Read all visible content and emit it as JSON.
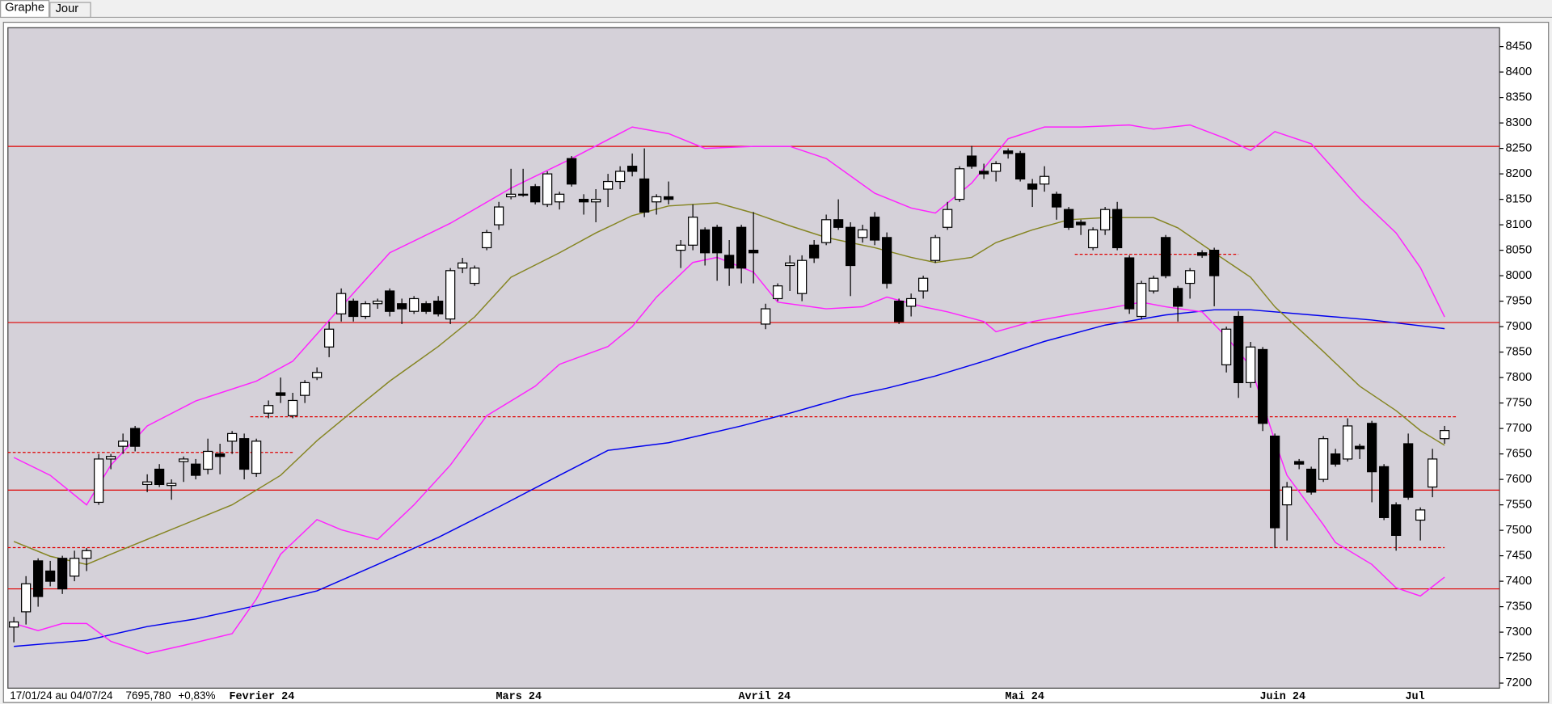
{
  "tabs": [
    "Graphe",
    "Jour"
  ],
  "chart_data": {
    "type": "candlestick",
    "info": {
      "period": "17/01/24 au 04/07/24",
      "last": "7695,780",
      "change": "+0,83%"
    },
    "categories": [
      null,
      null,
      null,
      null,
      null,
      null,
      null,
      null,
      null,
      null,
      null,
      null,
      null,
      null,
      null,
      null,
      null,
      null,
      "Fevrier 24",
      null,
      null,
      null,
      null,
      null,
      null,
      null,
      null,
      null,
      null,
      null,
      null,
      null,
      null,
      null,
      null,
      null,
      null,
      null,
      null,
      null,
      "Mars 24",
      null,
      null,
      null,
      null,
      null,
      null,
      null,
      null,
      null,
      null,
      null,
      null,
      null,
      null,
      null,
      null,
      null,
      null,
      null,
      "Avril 24",
      null,
      null,
      null,
      null,
      null,
      null,
      null,
      null,
      null,
      null,
      null,
      null,
      null,
      null,
      null,
      null,
      null,
      null,
      null,
      null,
      null,
      "Mai 24",
      null,
      null,
      null,
      null,
      null,
      null,
      null,
      null,
      null,
      null,
      null,
      null,
      null,
      null,
      null,
      null,
      null,
      null,
      null,
      null,
      "Juin 24",
      null,
      null,
      null,
      null,
      null,
      null,
      null,
      null,
      null,
      null,
      null,
      "Jul",
      null,
      null,
      null
    ],
    "open": [
      7310,
      7340,
      7440,
      7420,
      7445,
      7410,
      7445,
      7555,
      7640,
      7665,
      7700,
      7590,
      7620,
      7588,
      7635,
      7630,
      7620,
      7650,
      7675,
      7680,
      7612,
      7730,
      7770,
      7725,
      7765,
      7800,
      7860,
      7925,
      7950,
      7920,
      7945,
      7970,
      7945,
      7930,
      7945,
      7950,
      7915,
      8015,
      7985,
      8055,
      8100,
      8155,
      8160,
      8175,
      8140,
      8145,
      8230,
      8150,
      8145,
      8170,
      8185,
      8215,
      8190,
      8145,
      8155,
      8050,
      8060,
      8090,
      8095,
      8040,
      8095,
      8050,
      7905,
      7955,
      8020,
      7965,
      8060,
      8065,
      8110,
      8095,
      8075,
      8115,
      8075,
      7950,
      7940,
      7970,
      8030,
      8095,
      8150,
      8235,
      8205,
      8205,
      8245,
      8240,
      8180,
      8180,
      8160,
      8130,
      8105,
      8055,
      8090,
      8130,
      8035,
      7920,
      7970,
      8075,
      7975,
      7985,
      8045,
      8050,
      7825,
      7920,
      7790,
      7855,
      7685,
      7550,
      7635,
      7620,
      7600,
      7650,
      7640,
      7665,
      7710,
      7625,
      7550,
      7670,
      7520,
      7585,
      7680
    ],
    "high": [
      7330,
      7410,
      7445,
      7440,
      7450,
      7460,
      7465,
      7650,
      7650,
      7690,
      7705,
      7610,
      7630,
      7600,
      7645,
      7640,
      7680,
      7670,
      7695,
      7690,
      7680,
      7755,
      7800,
      7770,
      7795,
      7820,
      7910,
      7975,
      7955,
      7950,
      7955,
      7975,
      7955,
      7960,
      7950,
      7960,
      8015,
      8035,
      8020,
      8090,
      8145,
      8210,
      8210,
      8180,
      8205,
      8165,
      8235,
      8160,
      8170,
      8200,
      8215,
      8240,
      8250,
      8160,
      8185,
      8070,
      8140,
      8095,
      8100,
      8070,
      8100,
      8125,
      7945,
      7985,
      8040,
      8040,
      8070,
      8120,
      8150,
      8105,
      8100,
      8125,
      8085,
      7955,
      7965,
      8000,
      8080,
      8145,
      8215,
      8255,
      8220,
      8225,
      8250,
      8245,
      8190,
      8215,
      8165,
      8135,
      8110,
      8095,
      8135,
      8145,
      8040,
      7990,
      8000,
      8080,
      7980,
      8015,
      8050,
      8055,
      7900,
      7930,
      7870,
      7860,
      7690,
      7595,
      7640,
      7625,
      7685,
      7660,
      7720,
      7670,
      7715,
      7630,
      7555,
      7690,
      7545,
      7660,
      7705
    ],
    "low": [
      7280,
      7315,
      7350,
      7390,
      7375,
      7400,
      7420,
      7550,
      7620,
      7650,
      7655,
      7575,
      7585,
      7560,
      7595,
      7600,
      7610,
      7610,
      7650,
      7600,
      7605,
      7720,
      7750,
      7720,
      7750,
      7795,
      7840,
      7910,
      7910,
      7915,
      7935,
      7920,
      7905,
      7925,
      7925,
      7920,
      7905,
      8005,
      7980,
      8050,
      8090,
      8150,
      8155,
      8140,
      8135,
      8130,
      8175,
      8120,
      8105,
      8135,
      8170,
      8195,
      8115,
      8120,
      8140,
      8015,
      8050,
      8020,
      7990,
      7980,
      7985,
      7985,
      7895,
      7950,
      7970,
      7950,
      8025,
      8060,
      8090,
      7960,
      8065,
      8060,
      7975,
      7905,
      7920,
      7955,
      8025,
      8090,
      8145,
      8210,
      8190,
      8185,
      8230,
      8185,
      8135,
      8165,
      8110,
      8090,
      8080,
      8050,
      8080,
      8050,
      7925,
      7915,
      7965,
      7995,
      7910,
      7955,
      8035,
      7940,
      7810,
      7760,
      7780,
      7695,
      7465,
      7480,
      7620,
      7570,
      7595,
      7625,
      7635,
      7640,
      7555,
      7520,
      7460,
      7560,
      7480,
      7565,
      7670
    ],
    "close": [
      7320,
      7395,
      7370,
      7400,
      7385,
      7445,
      7460,
      7640,
      7645,
      7675,
      7665,
      7595,
      7590,
      7592,
      7640,
      7608,
      7655,
      7645,
      7690,
      7620,
      7675,
      7745,
      7765,
      7755,
      7790,
      7810,
      7895,
      7965,
      7920,
      7945,
      7950,
      7930,
      7935,
      7955,
      7930,
      7925,
      8010,
      8025,
      8015,
      8085,
      8135,
      8160,
      8160,
      8145,
      8200,
      8160,
      8180,
      8145,
      8150,
      8185,
      8205,
      8205,
      8125,
      8155,
      8150,
      8060,
      8115,
      8045,
      8045,
      8015,
      8015,
      8045,
      7935,
      7980,
      8025,
      8030,
      8035,
      8110,
      8095,
      8020,
      8090,
      8070,
      7985,
      7910,
      7955,
      7995,
      8075,
      8130,
      8210,
      8215,
      8200,
      8220,
      8240,
      8190,
      8170,
      8195,
      8135,
      8095,
      8100,
      8090,
      8130,
      8055,
      7935,
      7985,
      7995,
      8000,
      7940,
      8010,
      8040,
      8000,
      7895,
      7790,
      7860,
      7710,
      7505,
      7585,
      7630,
      7575,
      7680,
      7630,
      7705,
      7660,
      7615,
      7525,
      7490,
      7565,
      7540,
      7640,
      7696
    ],
    "up_color": "#ffffff",
    "down_color": "#000000",
    "lines": [
      {
        "color": "#0000ee",
        "x": [
          0,
          6,
          11,
          15,
          20,
          25,
          30,
          35,
          40,
          45,
          49,
          54,
          60,
          64,
          69,
          72,
          76,
          80,
          85,
          90,
          95,
          99,
          102,
          107,
          112,
          118
        ],
        "values": [
          7272,
          7284,
          7311,
          7326,
          7352,
          7381,
          7433,
          7486,
          7546,
          7608,
          7657,
          7672,
          7705,
          7730,
          7764,
          7779,
          7803,
          7832,
          7871,
          7903,
          7923,
          7933,
          7933,
          7923,
          7913,
          7896
        ]
      },
      {
        "color": "#858522",
        "x": [
          0,
          3,
          6,
          8,
          12,
          15,
          18,
          22,
          25,
          28,
          31,
          35,
          38,
          41,
          45,
          48,
          51,
          54,
          58,
          61,
          64,
          67,
          71,
          74,
          76,
          79,
          81,
          84,
          87,
          90,
          94,
          96,
          99,
          102,
          104,
          108,
          111,
          114,
          116,
          118
        ],
        "values": [
          7478,
          7449,
          7433,
          7453,
          7492,
          7521,
          7550,
          7608,
          7676,
          7735,
          7793,
          7861,
          7919,
          7997,
          8045,
          8084,
          8118,
          8137,
          8143,
          8123,
          8098,
          8075,
          8055,
          8036,
          8026,
          8036,
          8065,
          8090,
          8110,
          8114,
          8114,
          8094,
          8045,
          7997,
          7939,
          7851,
          7783,
          7735,
          7696,
          7667
        ]
      },
      {
        "color": "#ff22ff",
        "x": [
          0,
          3,
          6,
          8,
          11,
          15,
          20,
          23,
          27,
          31,
          36,
          41,
          46,
          51,
          54,
          57,
          61,
          64,
          67,
          71,
          74,
          76,
          79,
          82,
          85,
          88,
          92,
          94,
          97,
          100,
          102,
          104,
          107,
          111,
          114,
          116,
          118
        ],
        "values": [
          7643,
          7608,
          7550,
          7628,
          7705,
          7754,
          7793,
          7832,
          7939,
          8045,
          8103,
          8172,
          8230,
          8292,
          8279,
          8250,
          8254,
          8254,
          8230,
          8162,
          8133,
          8123,
          8182,
          8269,
          8292,
          8292,
          8296,
          8288,
          8296,
          8269,
          8246,
          8283,
          8259,
          8152,
          8084,
          8016,
          7919
        ]
      },
      {
        "color": "#ff22ff",
        "x": [
          0,
          2,
          4,
          6,
          8,
          11,
          14,
          18,
          20,
          22,
          25,
          27,
          30,
          33,
          36,
          39,
          43,
          45,
          49,
          51,
          53,
          56,
          58,
          61,
          63,
          67,
          70,
          72,
          75,
          77,
          80,
          81,
          84,
          87,
          90,
          93,
          95,
          98,
          100,
          102,
          104,
          105,
          108,
          109,
          112,
          114,
          116,
          118
        ],
        "values": [
          7317,
          7303,
          7317,
          7317,
          7282,
          7258,
          7274,
          7297,
          7365,
          7453,
          7521,
          7501,
          7482,
          7550,
          7628,
          7725,
          7783,
          7826,
          7861,
          7900,
          7958,
          8026,
          8036,
          8007,
          7948,
          7935,
          7939,
          7958,
          7939,
          7929,
          7910,
          7890,
          7910,
          7923,
          7935,
          7948,
          7939,
          7929,
          7880,
          7822,
          7676,
          7608,
          7511,
          7476,
          7433,
          7387,
          7371,
          7408
        ]
      }
    ],
    "hlines": [
      {
        "value": 8254,
        "color": "#e00000",
        "dashed": false
      },
      {
        "value": 7908,
        "color": "#e00000",
        "dashed": false
      },
      {
        "value": 7579,
        "color": "#e00000",
        "dashed": false
      },
      {
        "value": 7385,
        "color": "#e00000",
        "dashed": false
      },
      {
        "value": 7653,
        "color": "#e00000",
        "dashed": true,
        "x": [
          0,
          22
        ]
      },
      {
        "value": 7723,
        "color": "#e00000",
        "dashed": true,
        "x": [
          20,
          118
        ]
      },
      {
        "value": 7466,
        "color": "#e00000",
        "dashed": true,
        "x": [
          0,
          117
        ]
      },
      {
        "value": 8042,
        "color": "#e00000",
        "dashed": true,
        "x": [
          88,
          100
        ]
      }
    ],
    "ylim": [
      7190,
      8487
    ],
    "yticks": [
      7200,
      7250,
      7300,
      7350,
      7400,
      7450,
      7500,
      7550,
      7600,
      7650,
      7700,
      7750,
      7800,
      7850,
      7900,
      7950,
      8000,
      8050,
      8100,
      8150,
      8200,
      8250,
      8300,
      8350,
      8400,
      8450
    ]
  }
}
